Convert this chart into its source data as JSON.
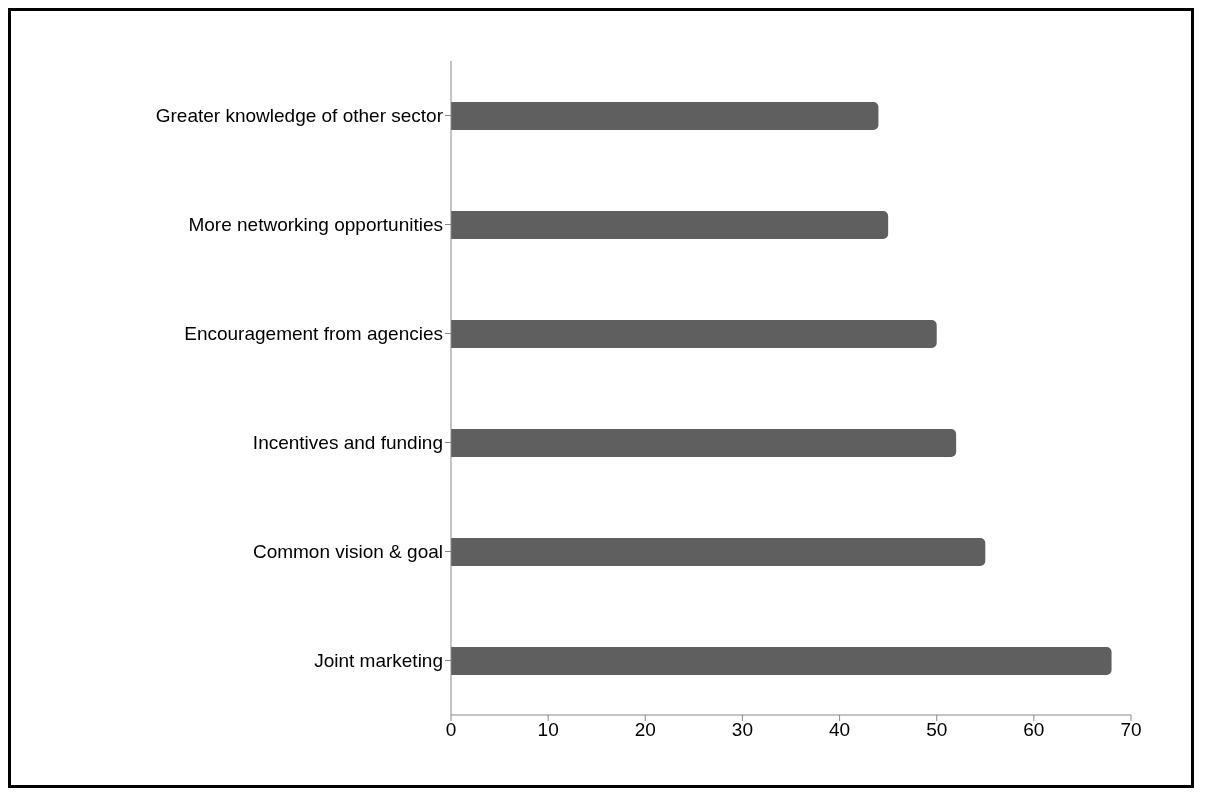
{
  "chart_data": {
    "type": "bar",
    "orientation": "horizontal",
    "categories": [
      "Greater knowledge of other sector",
      "More networking opportunities",
      "Encouragement from agencies",
      "Incentives and funding",
      "Common vision & goal",
      "Joint marketing"
    ],
    "values": [
      44,
      45,
      50,
      52,
      55,
      68
    ],
    "color": "#5f5f5f",
    "xlim": [
      0,
      70
    ],
    "xticks": [
      0,
      10,
      20,
      30,
      40,
      50,
      60,
      70
    ],
    "grid": false,
    "legend": false
  }
}
